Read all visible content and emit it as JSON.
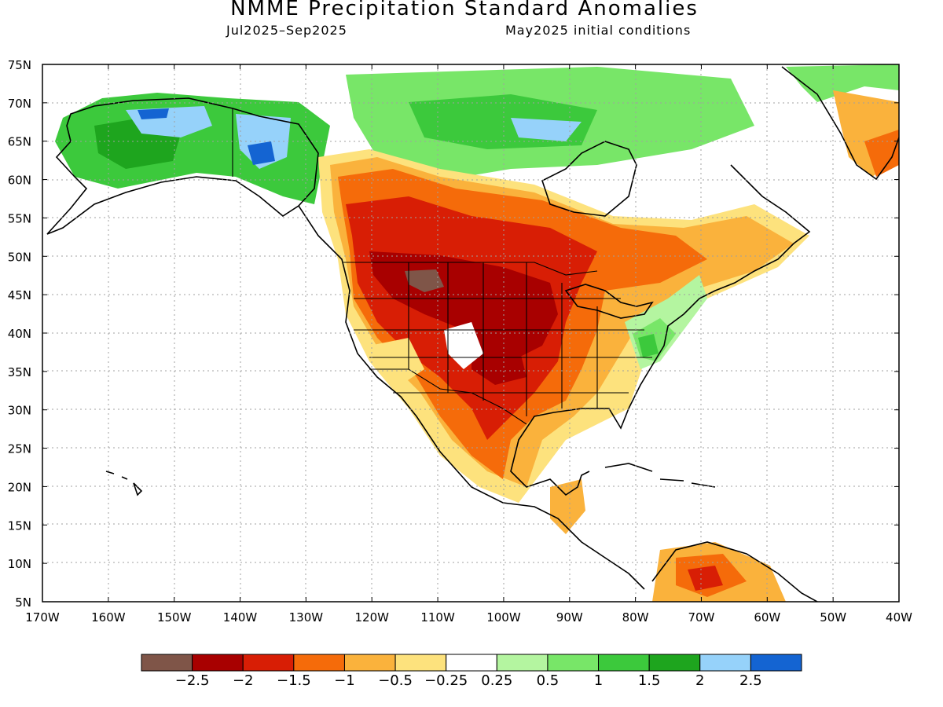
{
  "title": "NMME Precipitation Standard Anomalies",
  "subtitle_left": "Jul2025–Sep2025",
  "subtitle_right": "May2025 initial conditions",
  "lat_labels": [
    "75N",
    "70N",
    "65N",
    "60N",
    "55N",
    "50N",
    "45N",
    "40N",
    "35N",
    "30N",
    "25N",
    "20N",
    "15N",
    "10N",
    "5N"
  ],
  "lon_labels": [
    "170W",
    "160W",
    "150W",
    "140W",
    "130W",
    "120W",
    "110W",
    "100W",
    "90W",
    "80W",
    "70W",
    "60W",
    "50W",
    "40W"
  ],
  "colorbar": {
    "colors": [
      "#7f5548",
      "#a80000",
      "#d81e05",
      "#f56b0a",
      "#fab23c",
      "#fde27d",
      "#ffffff",
      "#b4f5a0",
      "#78e668",
      "#3cc93c",
      "#1ea51e",
      "#96d2fa",
      "#1464d2"
    ],
    "labels": [
      "−2.5",
      "−2",
      "−1.5",
      "−1",
      "−0.5",
      "−0.25",
      "0.25",
      "0.5",
      "1",
      "1.5",
      "2",
      "2.5"
    ]
  }
}
